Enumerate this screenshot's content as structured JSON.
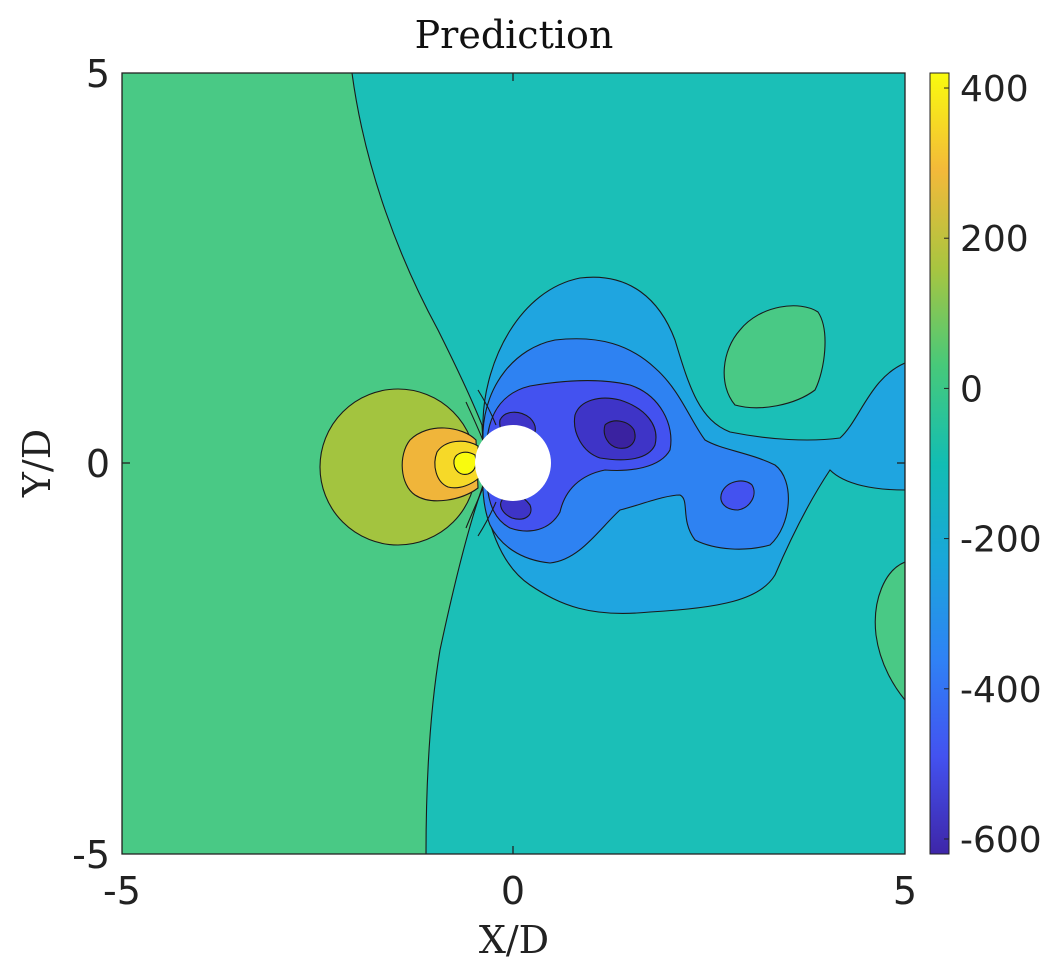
{
  "chart_data": {
    "type": "contour",
    "title": "Prediction",
    "xlabel": "X/D",
    "ylabel": "Y/D",
    "xlim": [
      -5,
      5
    ],
    "ylim": [
      -5,
      5
    ],
    "xticks": [
      "-5",
      "0",
      "5"
    ],
    "yticks": [
      "-5",
      "0",
      "5"
    ],
    "colorbar": {
      "colormap": "parula",
      "range": [
        -620,
        420
      ],
      "ticks": [
        "400",
        "200",
        "0",
        "-200",
        "-400",
        "-600"
      ],
      "tick_values": [
        400,
        200,
        0,
        -200,
        -400,
        -600
      ]
    },
    "contour_levels": [
      -600,
      -500,
      -400,
      -300,
      -200,
      -100,
      0,
      100,
      200,
      300,
      400
    ],
    "field_features": [
      {
        "kind": "max",
        "x": -0.65,
        "y": 0.0,
        "value": 390
      },
      {
        "kind": "min",
        "x": 1.35,
        "y": 0.35,
        "value": -570
      },
      {
        "kind": "min",
        "x": 0.0,
        "y": 0.55,
        "value": -510
      },
      {
        "kind": "min",
        "x": 0.0,
        "y": -0.55,
        "value": -510
      },
      {
        "kind": "min",
        "x": 2.85,
        "y": -0.4,
        "value": -420
      }
    ],
    "obstacle": {
      "shape": "circle",
      "center": [
        0,
        0
      ],
      "diameter": 1
    }
  },
  "colors": {
    "background": "#ffffff",
    "obstacle": "#ffffff",
    "contour_line": "#1a1a1a"
  }
}
